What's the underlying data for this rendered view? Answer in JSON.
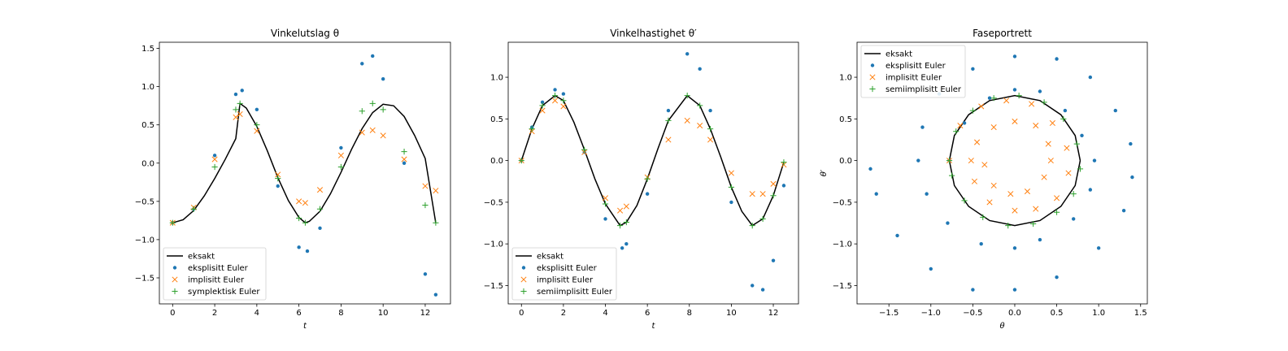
{
  "colors": {
    "exact": "#000000",
    "explicit": "#1f77b4",
    "implicit": "#ff7f0e",
    "symplectic": "#2ca02c"
  },
  "chart_data": [
    {
      "type": "line",
      "title": "Vinkelutslag θ",
      "xlabel": "t",
      "ylabel": "",
      "xlim": [
        -0.63,
        13.2
      ],
      "ylim": [
        -1.84,
        1.58
      ],
      "xticks": [
        0,
        2,
        4,
        6,
        8,
        10,
        12
      ],
      "yticks": [
        -1.5,
        -1.0,
        -0.5,
        0.0,
        0.5,
        1.0,
        1.5
      ],
      "xtick_labels": [
        "0",
        "2",
        "4",
        "6",
        "8",
        "10",
        "12"
      ],
      "ytick_labels": [
        "−1.5",
        "−1.0",
        "−0.5",
        "0.0",
        "0.5",
        "1.0",
        "1.5"
      ],
      "legend_position": "lower-left",
      "series": [
        {
          "name": "eksakt",
          "marker": "line",
          "color": "#000000",
          "x": [
            0,
            0.5,
            1,
            1.5,
            2,
            2.5,
            3,
            3.2,
            3.5,
            4,
            4.5,
            5,
            5.5,
            6,
            6.3,
            6.5,
            7,
            7.5,
            8,
            8.5,
            9,
            9.5,
            10,
            10.5,
            11,
            11.5,
            12,
            12.5
          ],
          "y": [
            -0.78,
            -0.74,
            -0.62,
            -0.43,
            -0.2,
            0.05,
            0.32,
            0.78,
            0.72,
            0.48,
            0.16,
            -0.19,
            -0.49,
            -0.71,
            -0.78,
            -0.76,
            -0.63,
            -0.4,
            -0.12,
            0.18,
            0.45,
            0.66,
            0.77,
            0.75,
            0.61,
            0.36,
            0.06,
            -0.78
          ]
        },
        {
          "name": "eksplisitt Euler",
          "marker": "dot",
          "color": "#1f77b4",
          "x": [
            0,
            1,
            2,
            3,
            3.3,
            4,
            5,
            6,
            6.4,
            7,
            8,
            9,
            9.5,
            10,
            11,
            12,
            12.5
          ],
          "y": [
            -0.78,
            -0.6,
            0.1,
            0.9,
            0.95,
            0.7,
            -0.3,
            -1.1,
            -1.15,
            -0.85,
            0.2,
            1.3,
            1.4,
            1.1,
            0.0,
            -1.45,
            -1.72
          ]
        },
        {
          "name": "implisitt Euler",
          "marker": "x",
          "color": "#ff7f0e",
          "x": [
            0,
            1,
            2,
            3,
            3.2,
            4,
            5,
            6,
            6.3,
            7,
            8,
            9,
            9.5,
            10,
            11,
            12,
            12.5
          ],
          "y": [
            -0.78,
            -0.58,
            0.05,
            0.6,
            0.64,
            0.42,
            -0.15,
            -0.5,
            -0.52,
            -0.35,
            0.1,
            0.4,
            0.43,
            0.36,
            0.05,
            -0.3,
            -0.36
          ]
        },
        {
          "name": "symplektisk Euler",
          "marker": "plus",
          "color": "#2ca02c",
          "x": [
            0,
            1,
            2,
            3,
            3.2,
            4,
            5,
            6,
            6.3,
            7,
            8,
            9,
            9.5,
            10,
            11,
            12,
            12.5
          ],
          "y": [
            -0.78,
            -0.6,
            -0.05,
            0.7,
            0.78,
            0.5,
            -0.2,
            -0.72,
            -0.78,
            -0.6,
            -0.05,
            0.68,
            0.78,
            0.7,
            0.15,
            -0.55,
            -0.78
          ]
        }
      ]
    },
    {
      "type": "line",
      "title": "Vinkelhastighet θ′",
      "xlabel": "t",
      "ylabel": "",
      "xlim": [
        -0.63,
        13.2
      ],
      "ylim": [
        -1.72,
        1.42
      ],
      "xticks": [
        0,
        2,
        4,
        6,
        8,
        10,
        12
      ],
      "yticks": [
        -1.5,
        -1.0,
        -0.5,
        0.0,
        0.5,
        1.0
      ],
      "xtick_labels": [
        "0",
        "2",
        "4",
        "6",
        "8",
        "10",
        "12"
      ],
      "ytick_labels": [
        "−1.5",
        "−1.0",
        "−0.5",
        "0.0",
        "0.5",
        "1.0"
      ],
      "legend_position": "lower-left",
      "series": [
        {
          "name": "eksakt",
          "marker": "line",
          "color": "#000000",
          "x": [
            0,
            0.5,
            1,
            1.6,
            2,
            2.5,
            3,
            3.5,
            4,
            4.7,
            5,
            5.5,
            6,
            6.5,
            7,
            7.9,
            8.5,
            9,
            9.5,
            10,
            10.5,
            11,
            11.5,
            12,
            12.5
          ],
          "y": [
            0,
            0.38,
            0.66,
            0.78,
            0.72,
            0.46,
            0.13,
            -0.22,
            -0.52,
            -0.78,
            -0.74,
            -0.54,
            -0.22,
            0.14,
            0.48,
            0.78,
            0.66,
            0.38,
            0.04,
            -0.32,
            -0.61,
            -0.78,
            -0.7,
            -0.42,
            -0.02
          ]
        },
        {
          "name": "eksplisitt Euler",
          "marker": "dot",
          "color": "#1f77b4",
          "x": [
            0,
            0.5,
            1,
            1.6,
            2,
            3,
            4,
            4.8,
            5,
            6,
            7,
            7.9,
            8.5,
            9,
            10,
            11,
            11.5,
            12,
            12.5
          ],
          "y": [
            0,
            0.4,
            0.7,
            0.85,
            0.8,
            0.1,
            -0.7,
            -1.05,
            -1.0,
            -0.4,
            0.6,
            1.28,
            1.1,
            0.6,
            -0.5,
            -1.5,
            -1.55,
            -1.2,
            -0.3
          ]
        },
        {
          "name": "implisitt Euler",
          "marker": "x",
          "color": "#ff7f0e",
          "x": [
            0,
            0.5,
            1,
            1.6,
            2,
            3,
            4,
            4.7,
            5,
            6,
            7,
            7.9,
            8.5,
            9,
            10,
            11,
            11.5,
            12,
            12.5
          ],
          "y": [
            0,
            0.35,
            0.6,
            0.72,
            0.65,
            0.1,
            -0.45,
            -0.6,
            -0.55,
            -0.2,
            0.25,
            0.48,
            0.42,
            0.25,
            -0.15,
            -0.4,
            -0.4,
            -0.28,
            -0.05
          ]
        },
        {
          "name": "semiimplisitt Euler",
          "marker": "plus",
          "color": "#2ca02c",
          "x": [
            0,
            0.5,
            1,
            1.6,
            2,
            3,
            4,
            4.7,
            5,
            6,
            7,
            7.9,
            8.5,
            9,
            10,
            11,
            11.5,
            12,
            12.5
          ],
          "y": [
            0,
            0.38,
            0.66,
            0.78,
            0.72,
            0.13,
            -0.52,
            -0.78,
            -0.74,
            -0.22,
            0.48,
            0.78,
            0.66,
            0.38,
            -0.32,
            -0.78,
            -0.7,
            -0.42,
            -0.02
          ]
        }
      ]
    },
    {
      "type": "scatter",
      "title": "Faseportrett",
      "xlabel": "θ",
      "ylabel": "θ′",
      "xlim": [
        -1.88,
        1.58
      ],
      "ylim": [
        -1.72,
        1.42
      ],
      "xticks": [
        -1.5,
        -1.0,
        -0.5,
        0.0,
        0.5,
        1.0,
        1.5
      ],
      "yticks": [
        -1.5,
        -1.0,
        -0.5,
        0.0,
        0.5,
        1.0
      ],
      "xtick_labels": [
        "−1.5",
        "−1.0",
        "−0.5",
        "0.0",
        "0.5",
        "1.0",
        "1.5"
      ],
      "ytick_labels": [
        "−1.5",
        "−1.0",
        "−0.5",
        "0.0",
        "0.5",
        "1.0"
      ],
      "legend_position": "upper-left",
      "series": [
        {
          "name": "eksakt",
          "marker": "line",
          "color": "#000000",
          "x": [
            0.78,
            0.72,
            0.55,
            0.3,
            0.0,
            -0.3,
            -0.55,
            -0.72,
            -0.78,
            -0.72,
            -0.55,
            -0.3,
            0.0,
            0.3,
            0.55,
            0.72,
            0.78
          ],
          "y": [
            0.0,
            0.3,
            0.55,
            0.72,
            0.78,
            0.72,
            0.55,
            0.3,
            0.0,
            -0.3,
            -0.55,
            -0.72,
            -0.78,
            -0.72,
            -0.55,
            -0.3,
            0.0
          ]
        },
        {
          "name": "eksplisitt Euler",
          "marker": "dot",
          "color": "#1f77b4",
          "x": [
            -0.78,
            -0.6,
            -0.3,
            0.0,
            0.3,
            0.6,
            0.8,
            0.95,
            0.9,
            0.7,
            0.3,
            0.0,
            -0.4,
            -0.8,
            -1.05,
            -1.15,
            -1.1,
            -0.9,
            -0.5,
            0.0,
            0.5,
            0.9,
            1.2,
            1.38,
            1.4,
            1.3,
            1.0,
            0.5,
            0.0,
            -0.5,
            -1.0,
            -1.4,
            -1.65,
            -1.72
          ],
          "y": [
            0.0,
            0.45,
            0.75,
            0.85,
            0.83,
            0.6,
            0.3,
            0.0,
            -0.35,
            -0.7,
            -0.95,
            -1.05,
            -1.0,
            -0.75,
            -0.4,
            0.0,
            0.4,
            0.8,
            1.1,
            1.25,
            1.22,
            1.0,
            0.6,
            0.2,
            -0.2,
            -0.6,
            -1.05,
            -1.4,
            -1.55,
            -1.55,
            -1.3,
            -0.9,
            -0.4,
            -0.1
          ]
        },
        {
          "name": "implisitt Euler",
          "marker": "x",
          "color": "#ff7f0e",
          "x": [
            -0.78,
            -0.65,
            -0.4,
            -0.1,
            0.2,
            0.45,
            0.62,
            0.64,
            0.5,
            0.25,
            0.0,
            -0.3,
            -0.48,
            -0.52,
            -0.45,
            -0.25,
            0.0,
            0.25,
            0.4,
            0.43,
            0.35,
            0.15,
            -0.05,
            -0.25,
            -0.36
          ],
          "y": [
            0.0,
            0.42,
            0.65,
            0.72,
            0.68,
            0.45,
            0.15,
            -0.15,
            -0.45,
            -0.58,
            -0.6,
            -0.5,
            -0.25,
            0.0,
            0.22,
            0.4,
            0.47,
            0.42,
            0.2,
            0.0,
            -0.2,
            -0.37,
            -0.4,
            -0.3,
            -0.05
          ]
        },
        {
          "name": "semiimplisitt Euler",
          "marker": "plus",
          "color": "#2ca02c",
          "x": [
            -0.78,
            -0.7,
            -0.5,
            -0.25,
            0.05,
            0.35,
            0.58,
            0.74,
            0.78,
            0.7,
            0.5,
            0.22,
            -0.08,
            -0.38,
            -0.6,
            -0.75
          ],
          "y": [
            0.0,
            0.35,
            0.6,
            0.75,
            0.78,
            0.7,
            0.5,
            0.2,
            -0.1,
            -0.4,
            -0.62,
            -0.76,
            -0.78,
            -0.68,
            -0.48,
            -0.18
          ]
        }
      ]
    }
  ]
}
